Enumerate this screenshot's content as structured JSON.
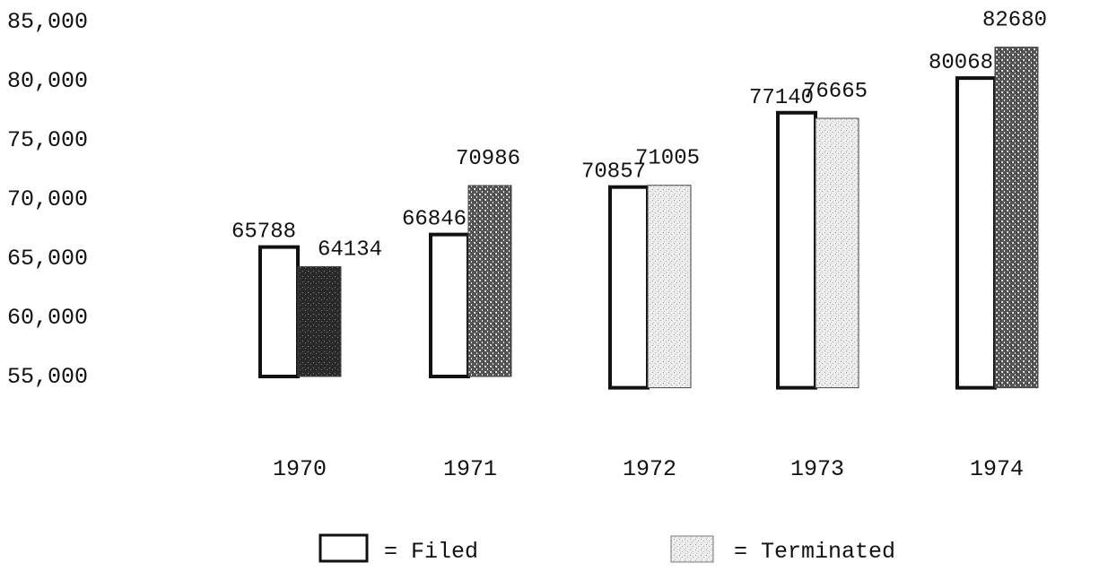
{
  "chart_data": {
    "type": "bar",
    "title": "",
    "xlabel": "",
    "ylabel": "",
    "categories": [
      "1970",
      "1971",
      "1972",
      "1973",
      "1974"
    ],
    "series": [
      {
        "name": "Filed",
        "values": [
          65788,
          66846,
          70857,
          77140,
          80068
        ]
      },
      {
        "name": "Terminated",
        "values": [
          64134,
          70986,
          71005,
          76665,
          82680
        ]
      }
    ],
    "y_ticks": [
      "85,000",
      "80,000",
      "75,000",
      "70,000",
      "65,000",
      "60,000",
      "55,000"
    ],
    "ylim": [
      55000,
      85000
    ],
    "grid": false,
    "legend": {
      "position": "bottom",
      "entries": [
        {
          "symbol": "open-box",
          "text": "= Filed"
        },
        {
          "symbol": "stippled-box",
          "text": "= Terminated"
        }
      ]
    },
    "colors": {
      "filed_fill": "#ffffff",
      "terminated_dark": "#1e1e1e",
      "terminated_light": "#e6e6e6",
      "ink": "#111111"
    }
  }
}
